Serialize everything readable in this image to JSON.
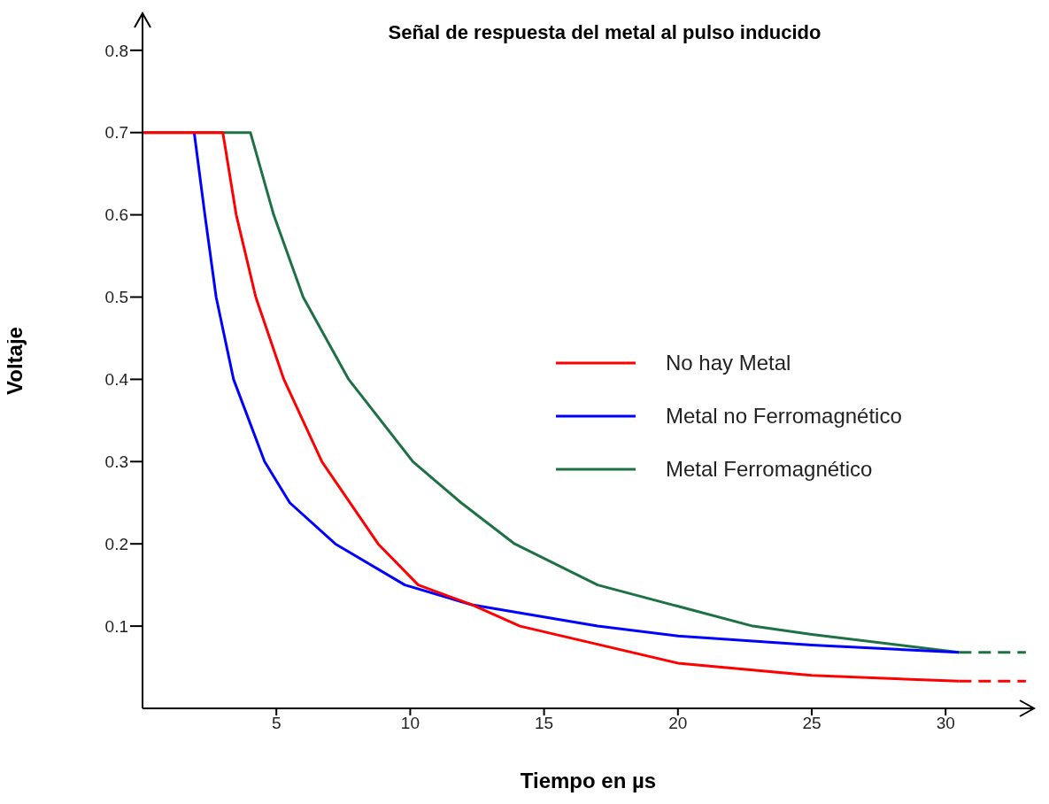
{
  "chart_data": {
    "type": "line",
    "title": "Señal de respuesta del metal al pulso inducido",
    "xlabel": "Tiempo en  µs",
    "ylabel": "Voltaje",
    "xlim": [
      0,
      33.3
    ],
    "ylim": [
      0,
      0.845
    ],
    "xticks": [
      5,
      10,
      15,
      20,
      25,
      30
    ],
    "yticks": [
      0.1,
      0.2,
      0.3,
      0.4,
      0.5,
      0.6,
      0.7,
      0.8
    ],
    "grid": false,
    "legend": "right",
    "marker": "none",
    "line_style": "solid",
    "series": [
      {
        "name": "No hay Metal",
        "color": "#ff0000",
        "x": [
          0,
          3,
          3.5,
          4.23,
          5.28,
          6.7,
          8.8,
          10.3,
          12.3,
          14.1,
          20,
          25,
          30.5
        ],
        "values": [
          0.7,
          0.7,
          0.6,
          0.5,
          0.4,
          0.3,
          0.2,
          0.15,
          0.126,
          0.1,
          0.055,
          0.04,
          0.033
        ]
      },
      {
        "name": "Metal no Ferromagnético",
        "color": "#0000ff",
        "x": [
          1.93,
          2.33,
          2.75,
          3.4,
          4.56,
          5.5,
          7.2,
          9.8,
          12.3,
          17,
          20,
          25,
          30.5
        ],
        "values": [
          0.7,
          0.6,
          0.5,
          0.4,
          0.3,
          0.25,
          0.2,
          0.15,
          0.126,
          0.1,
          0.088,
          0.077,
          0.068
        ]
      },
      {
        "name": "Metal Ferromagnético",
        "color": "#1e7145",
        "x": [
          0,
          4.03,
          4.9,
          6,
          7.7,
          10.1,
          11.9,
          13.9,
          17,
          22.8,
          25,
          30.5
        ],
        "values": [
          0.7,
          0.7,
          0.6,
          0.5,
          0.4,
          0.3,
          0.25,
          0.2,
          0.15,
          0.1,
          0.09,
          0.068
        ]
      },
      {
        "color": "#1e7145",
        "line_style": "dashed",
        "x": [
          30.5,
          33
        ],
        "values": [
          0.068,
          0.068
        ]
      },
      {
        "color": "#ff0000",
        "line_style": "dashed",
        "x": [
          30.5,
          33
        ],
        "values": [
          0.033,
          0.033
        ]
      }
    ]
  }
}
